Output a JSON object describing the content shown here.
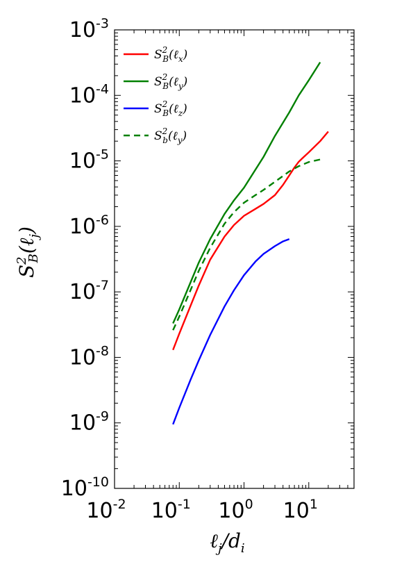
{
  "chart_data": {
    "type": "line",
    "title": "",
    "xlabel": "ℓj/di",
    "ylabel": "S²B(ℓj)",
    "xscale": "log",
    "yscale": "log",
    "xlim": [
      0.01,
      50
    ],
    "ylim": [
      1e-10,
      0.001
    ],
    "grid": false,
    "legend_position": "top-left",
    "x_ticks": [
      {
        "base": "10",
        "exp": "-2",
        "value": 0.01
      },
      {
        "base": "10",
        "exp": "-1",
        "value": 0.1
      },
      {
        "base": "10",
        "exp": "0",
        "value": 1
      },
      {
        "base": "10",
        "exp": "1",
        "value": 10
      }
    ],
    "y_ticks": [
      {
        "base": "10",
        "exp": "-10",
        "value": 1e-10
      },
      {
        "base": "10",
        "exp": "-9",
        "value": 1e-09
      },
      {
        "base": "10",
        "exp": "-8",
        "value": 1e-08
      },
      {
        "base": "10",
        "exp": "-7",
        "value": 1e-07
      },
      {
        "base": "10",
        "exp": "-6",
        "value": 1e-06
      },
      {
        "base": "10",
        "exp": "-5",
        "value": 1e-05
      },
      {
        "base": "10",
        "exp": "-4",
        "value": 0.0001
      },
      {
        "base": "10",
        "exp": "-3",
        "value": 0.001
      }
    ],
    "series": [
      {
        "name": "S²B(ℓx)",
        "legend": {
          "main": "S",
          "sup": "2",
          "sub": "B",
          "arg": "(ℓ",
          "argsub": "x",
          "close": ")"
        },
        "color": "#ff0000",
        "dash": "solid",
        "x": [
          0.08,
          0.1,
          0.15,
          0.2,
          0.3,
          0.5,
          0.7,
          1.0,
          1.5,
          2.0,
          3.0,
          4.0,
          5.0,
          6.0,
          7.0,
          8.0,
          10.0,
          15.0,
          20.0
        ],
        "y": [
          1.3e-08,
          2.3e-08,
          6.2e-08,
          1.25e-07,
          3.1e-07,
          7e-07,
          1.05e-06,
          1.45e-06,
          1.85e-06,
          2.2e-06,
          3e-06,
          4.3e-06,
          6e-06,
          7.9e-06,
          9.7e-06,
          1.1e-05,
          1.35e-05,
          2e-05,
          2.8e-05
        ]
      },
      {
        "name": "S²B(ℓy)",
        "legend": {
          "main": "S",
          "sup": "2",
          "sub": "B",
          "arg": "(ℓ",
          "argsub": "y",
          "close": ")"
        },
        "color": "#008000",
        "dash": "solid",
        "x": [
          0.08,
          0.1,
          0.2,
          0.3,
          0.5,
          0.7,
          1.0,
          2.0,
          3.0,
          5.0,
          7.0,
          10.0,
          15.0
        ],
        "y": [
          3.3e-08,
          5.4e-08,
          2.8e-07,
          6.4e-07,
          1.55e-06,
          2.5e-06,
          3.9e-06,
          1.15e-05,
          2.4e-05,
          5.5e-05,
          0.0001,
          0.00017,
          0.00032
        ]
      },
      {
        "name": "S²B(ℓz)",
        "legend": {
          "main": "S",
          "sup": "2",
          "sub": "B",
          "arg": "(ℓ",
          "argsub": "z",
          "close": ")"
        },
        "color": "#0000ff",
        "dash": "solid",
        "x": [
          0.08,
          0.1,
          0.15,
          0.2,
          0.3,
          0.5,
          0.7,
          1.0,
          1.5,
          2.0,
          3.0,
          4.0,
          5.0
        ],
        "y": [
          9.5e-10,
          1.7e-09,
          4.6e-09,
          9e-09,
          2.2e-08,
          6e-08,
          1.06e-07,
          1.8e-07,
          2.9e-07,
          3.8e-07,
          5e-07,
          5.9e-07,
          6.4e-07
        ]
      },
      {
        "name": "S²b(ℓy)",
        "legend": {
          "main": "S",
          "sup": "2",
          "sub": "b",
          "arg": "(ℓ",
          "argsub": "y",
          "close": ")"
        },
        "color": "#008000",
        "dash": "dashed",
        "x": [
          0.08,
          0.1,
          0.2,
          0.3,
          0.5,
          0.7,
          1.0,
          1.5,
          2.0,
          3.0,
          5.0,
          7.0,
          10.0,
          15.0
        ],
        "y": [
          2.6e-08,
          4.2e-08,
          2.1e-07,
          4.7e-07,
          1.1e-06,
          1.65e-06,
          2.3e-06,
          3e-06,
          3.6e-06,
          4.8e-06,
          6.9e-06,
          8.3e-06,
          9.6e-06,
          1.05e-05
        ]
      }
    ]
  }
}
